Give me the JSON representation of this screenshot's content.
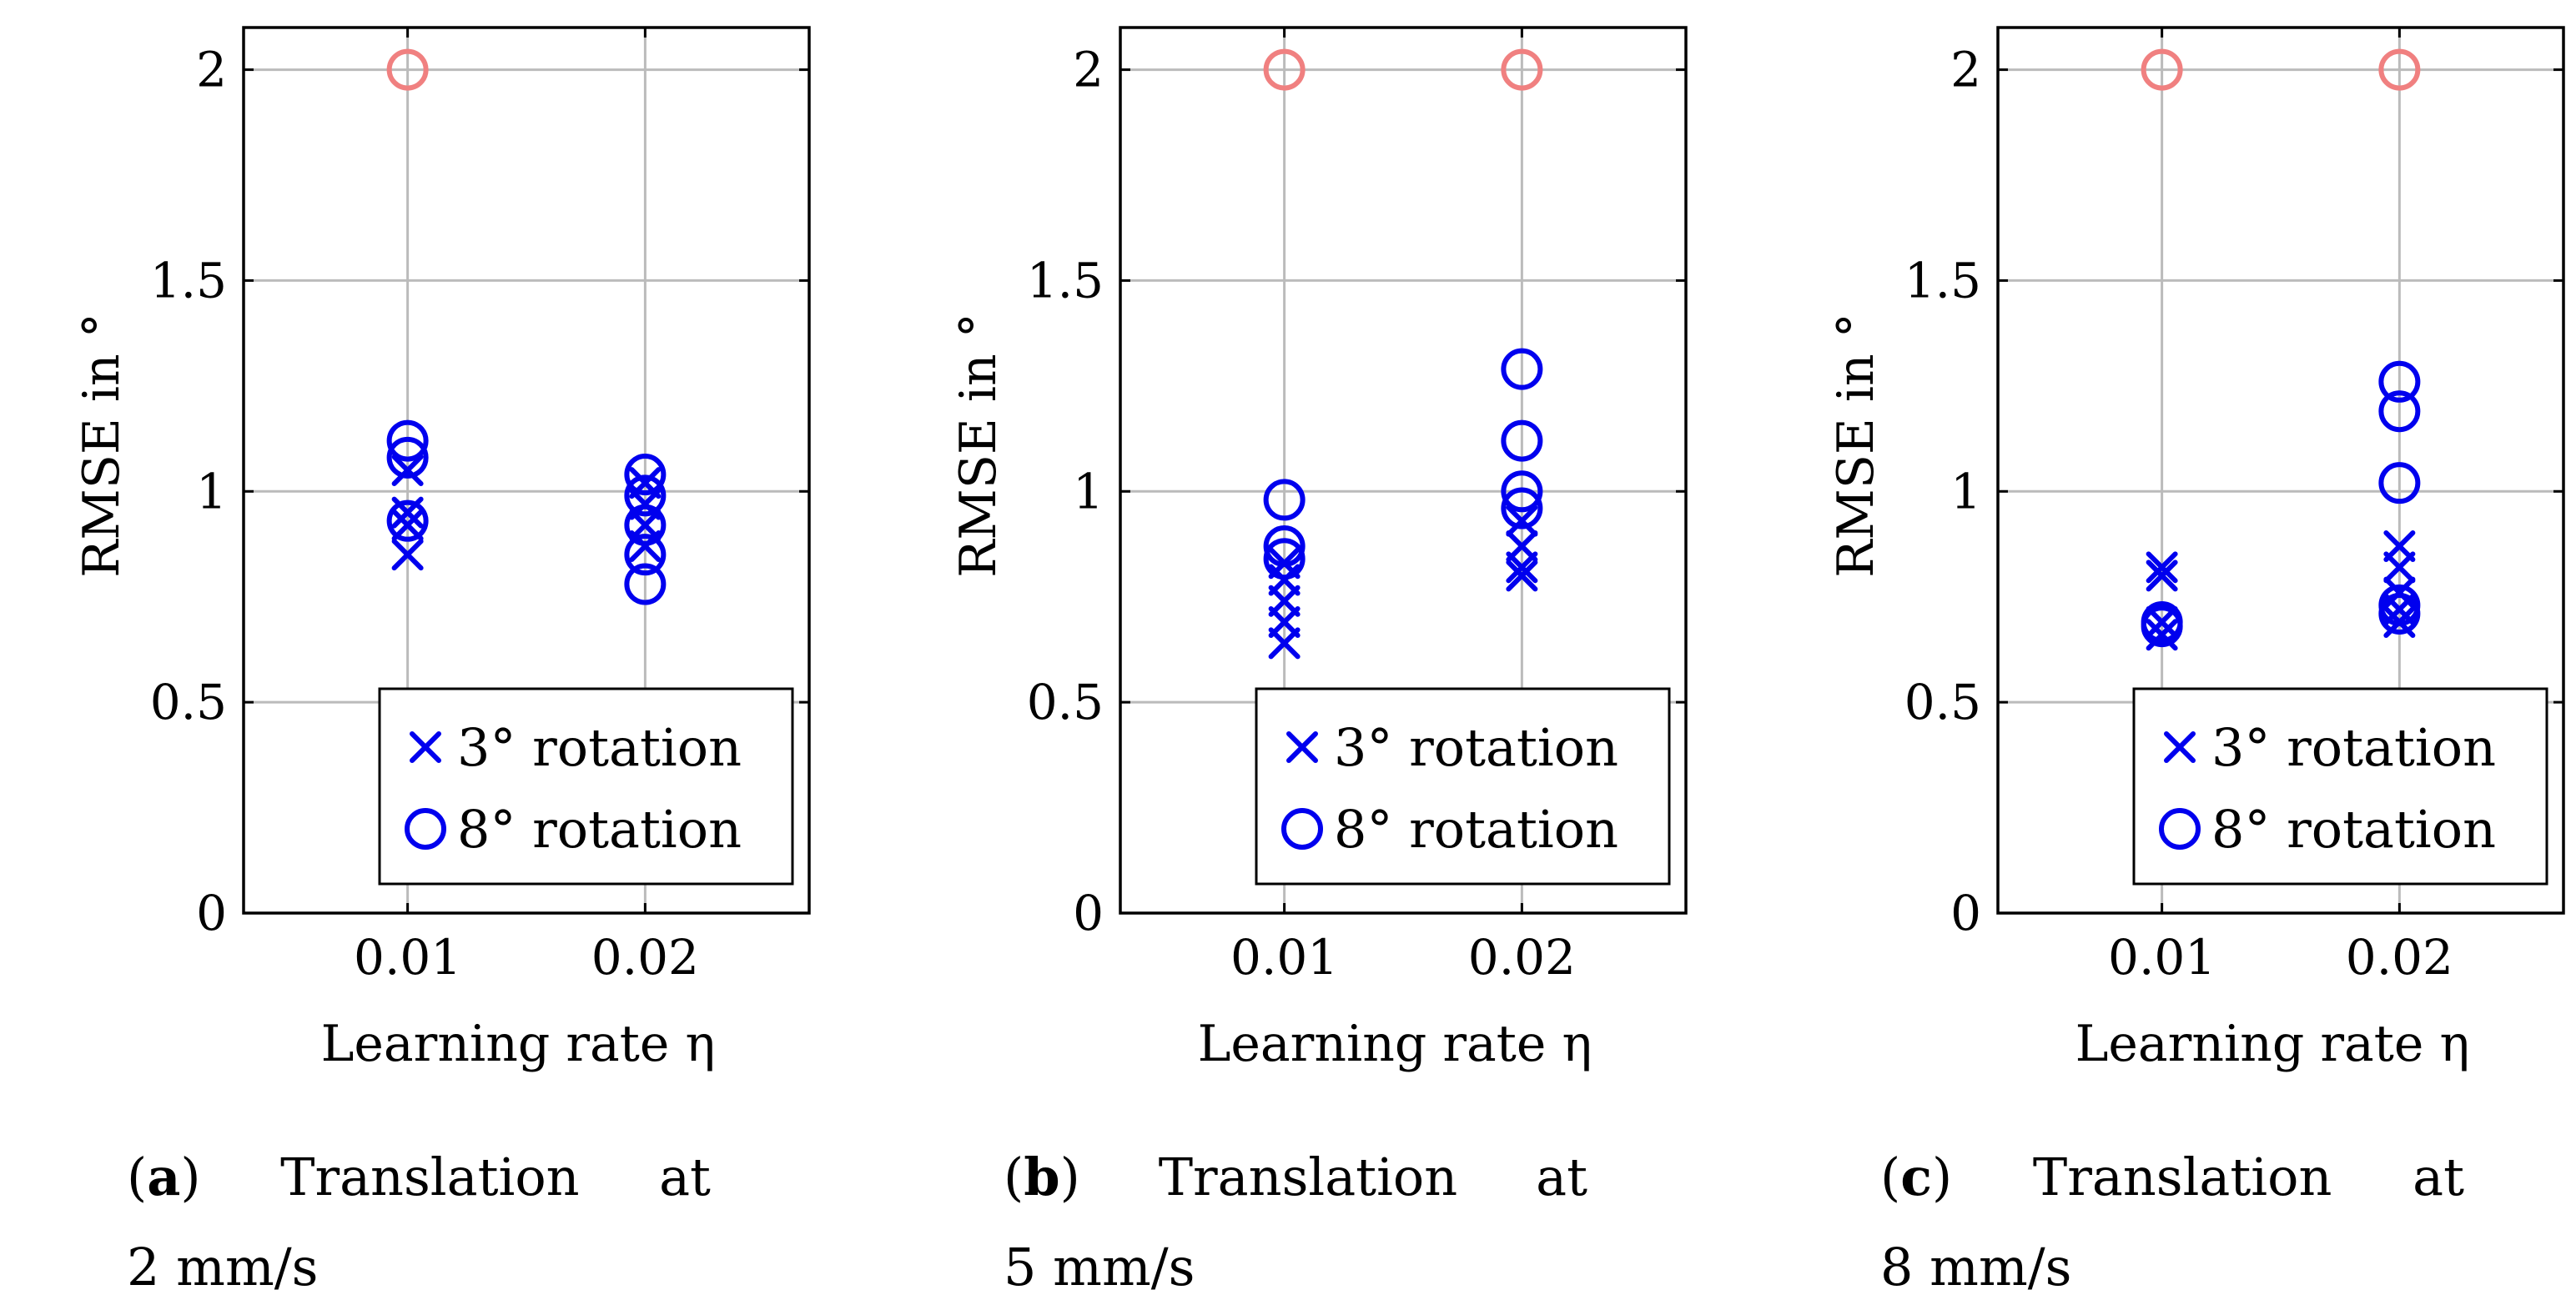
{
  "chart_data": [
    {
      "type": "scatter",
      "panel_id": "a",
      "xlabel": "Learning rate η",
      "ylabel": "RMSE in °",
      "categories": [
        "0.01",
        "0.02"
      ],
      "ylim": [
        0,
        2.1
      ],
      "yticks": [
        0,
        0.5,
        1,
        1.5,
        2
      ],
      "ytick_labels": [
        "0",
        "0.5",
        "1",
        "1.5",
        "2"
      ],
      "grid": true,
      "legend_position": "bottom-right",
      "series": [
        {
          "name": "3° rotation",
          "marker": "x",
          "color": "#0000ee",
          "points": [
            [
              0,
              0.85
            ],
            [
              0,
              0.92
            ],
            [
              0,
              0.95
            ],
            [
              0,
              1.05
            ],
            [
              1,
              0.87
            ],
            [
              1,
              0.92
            ],
            [
              1,
              0.97
            ],
            [
              1,
              1.02
            ]
          ]
        },
        {
          "name": "8° rotation",
          "marker": "o",
          "color": "#0000ee",
          "points": [
            [
              0,
              0.93
            ],
            [
              0,
              1.08
            ],
            [
              0,
              1.12
            ],
            [
              1,
              0.78
            ],
            [
              1,
              0.85
            ],
            [
              1,
              0.92
            ],
            [
              1,
              0.99
            ],
            [
              1,
              1.04
            ]
          ]
        },
        {
          "name": "",
          "marker": "o",
          "color": "#f08080",
          "points": [
            [
              0,
              2.0
            ]
          ]
        }
      ],
      "caption": {
        "label": "a",
        "text": "Translation",
        "at": "at",
        "speed": "2 mm/s"
      }
    },
    {
      "type": "scatter",
      "panel_id": "b",
      "xlabel": "Learning rate η",
      "ylabel": "RMSE in °",
      "categories": [
        "0.01",
        "0.02"
      ],
      "ylim": [
        0,
        2.1
      ],
      "yticks": [
        0,
        0.5,
        1,
        1.5,
        2
      ],
      "ytick_labels": [
        "0",
        "0.5",
        "1",
        "1.5",
        "2"
      ],
      "grid": true,
      "legend_position": "bottom-right",
      "series": [
        {
          "name": "3° rotation",
          "marker": "x",
          "color": "#0000ee",
          "points": [
            [
              0,
              0.64
            ],
            [
              0,
              0.69
            ],
            [
              0,
              0.74
            ],
            [
              0,
              0.79
            ],
            [
              0,
              0.83
            ],
            [
              1,
              0.8
            ],
            [
              1,
              0.82
            ],
            [
              1,
              0.87
            ],
            [
              1,
              0.93
            ]
          ]
        },
        {
          "name": "8° rotation",
          "marker": "o",
          "color": "#0000ee",
          "points": [
            [
              0,
              0.84
            ],
            [
              0,
              0.87
            ],
            [
              0,
              0.98
            ],
            [
              1,
              0.96
            ],
            [
              1,
              1.0
            ],
            [
              1,
              1.12
            ],
            [
              1,
              1.29
            ]
          ]
        },
        {
          "name": "",
          "marker": "o",
          "color": "#f08080",
          "points": [
            [
              0,
              2.0
            ],
            [
              1,
              2.0
            ]
          ]
        }
      ],
      "caption": {
        "label": "b",
        "text": "Translation",
        "at": "at",
        "speed": "5 mm/s"
      }
    },
    {
      "type": "scatter",
      "panel_id": "c",
      "xlabel": "Learning rate η",
      "ylabel": "RMSE in °",
      "categories": [
        "0.01",
        "0.02"
      ],
      "ylim": [
        0,
        2.1
      ],
      "yticks": [
        0,
        0.5,
        1,
        1.5,
        2
      ],
      "ytick_labels": [
        "0",
        "0.5",
        "1",
        "1.5",
        "2"
      ],
      "grid": true,
      "legend_position": "bottom-right",
      "series": [
        {
          "name": "3° rotation",
          "marker": "x",
          "color": "#0000ee",
          "points": [
            [
              0,
              0.66
            ],
            [
              0,
              0.69
            ],
            [
              0,
              0.8
            ],
            [
              0,
              0.82
            ],
            [
              1,
              0.69
            ],
            [
              1,
              0.72
            ],
            [
              1,
              0.76
            ],
            [
              1,
              0.82
            ],
            [
              1,
              0.87
            ]
          ]
        },
        {
          "name": "8° rotation",
          "marker": "o",
          "color": "#0000ee",
          "points": [
            [
              0,
              0.68
            ],
            [
              0,
              0.69
            ],
            [
              1,
              0.71
            ],
            [
              1,
              0.73
            ],
            [
              1,
              1.02
            ],
            [
              1,
              1.19
            ],
            [
              1,
              1.26
            ]
          ]
        },
        {
          "name": "",
          "marker": "o",
          "color": "#f08080",
          "points": [
            [
              0,
              2.0
            ],
            [
              1,
              2.0
            ]
          ]
        }
      ],
      "caption": {
        "label": "c",
        "text": "Translation",
        "at": "at",
        "speed": "8 mm/s"
      }
    }
  ]
}
